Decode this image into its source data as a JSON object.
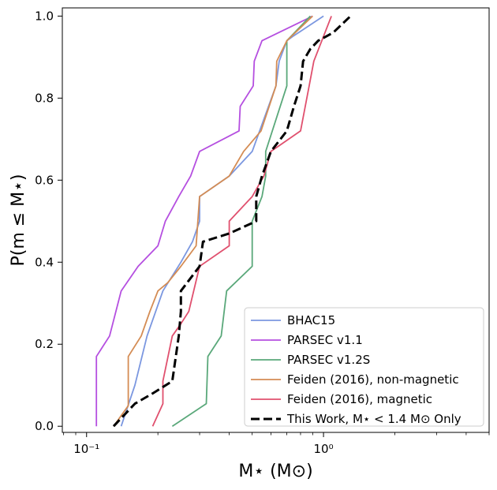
{
  "chart_data": {
    "type": "line",
    "xscale": "log",
    "xlim": [
      0.079,
      5.0
    ],
    "ylim": [
      -0.015,
      1.02
    ],
    "xlabel": "M⋆ (M⊙)",
    "ylabel": "P(m ≤ M⋆)",
    "x_ticks": [
      {
        "value": 0.1,
        "label": "10⁻¹"
      },
      {
        "value": 1.0,
        "label": "10⁰"
      }
    ],
    "y_ticks": [
      {
        "value": 0.0,
        "label": "0.0"
      },
      {
        "value": 0.2,
        "label": "0.2"
      },
      {
        "value": 0.4,
        "label": "0.4"
      },
      {
        "value": 0.6,
        "label": "0.6"
      },
      {
        "value": 0.8,
        "label": "0.8"
      },
      {
        "value": 1.0,
        "label": "1.0"
      }
    ],
    "legend_position": "lower right",
    "series": [
      {
        "name": "BHAC15",
        "color": "#7b97e0",
        "dashed": false,
        "x": [
          0.14,
          0.16,
          0.18,
          0.21,
          0.25,
          0.28,
          0.3,
          0.3,
          0.4,
          0.5,
          0.63,
          0.65,
          0.7,
          0.74,
          1.0
        ],
        "y": [
          0.0,
          0.1,
          0.22,
          0.33,
          0.4,
          0.45,
          0.5,
          0.56,
          0.61,
          0.67,
          0.83,
          0.89,
          0.94,
          0.95,
          1.0
        ]
      },
      {
        "name": "PARSEC v1.1",
        "color": "#b54fe0",
        "dashed": false,
        "x": [
          0.11,
          0.11,
          0.125,
          0.14,
          0.165,
          0.2,
          0.215,
          0.245,
          0.275,
          0.3,
          0.44,
          0.445,
          0.505,
          0.51,
          0.55,
          0.9
        ],
        "y": [
          0.0,
          0.17,
          0.22,
          0.33,
          0.39,
          0.44,
          0.5,
          0.56,
          0.61,
          0.67,
          0.72,
          0.78,
          0.83,
          0.89,
          0.94,
          1.0
        ]
      },
      {
        "name": "PARSEC v1.2S",
        "color": "#5aa87a",
        "dashed": false,
        "x": [
          0.23,
          0.32,
          0.325,
          0.37,
          0.39,
          0.5,
          0.5,
          0.55,
          0.57,
          0.57,
          0.7,
          0.7,
          0.88
        ],
        "y": [
          0.0,
          0.055,
          0.17,
          0.22,
          0.33,
          0.39,
          0.5,
          0.56,
          0.61,
          0.67,
          0.83,
          0.94,
          1.0
        ]
      },
      {
        "name": "Feiden (2016), non-magnetic",
        "color": "#d48c54",
        "dashed": false,
        "x": [
          0.13,
          0.15,
          0.15,
          0.17,
          0.185,
          0.2,
          0.22,
          0.25,
          0.29,
          0.3,
          0.4,
          0.46,
          0.545,
          0.63,
          0.635,
          0.7,
          0.9
        ],
        "y": [
          0.0,
          0.05,
          0.17,
          0.22,
          0.28,
          0.33,
          0.35,
          0.39,
          0.44,
          0.56,
          0.61,
          0.67,
          0.72,
          0.83,
          0.89,
          0.94,
          1.0
        ]
      },
      {
        "name": "Feiden (2016), magnetic",
        "color": "#e0506e",
        "dashed": false,
        "x": [
          0.19,
          0.21,
          0.21,
          0.23,
          0.25,
          0.27,
          0.3,
          0.4,
          0.4,
          0.5,
          0.56,
          0.6,
          0.8,
          0.87,
          0.91,
          1.08
        ],
        "y": [
          0.0,
          0.055,
          0.11,
          0.22,
          0.25,
          0.28,
          0.39,
          0.44,
          0.5,
          0.56,
          0.61,
          0.67,
          0.72,
          0.83,
          0.89,
          1.0
        ]
      },
      {
        "name": "This Work, M⋆ < 1.4 M⊙ Only",
        "color": "#000000",
        "dashed": true,
        "x": [
          0.13,
          0.16,
          0.19,
          0.23,
          0.245,
          0.25,
          0.25,
          0.3,
          0.31,
          0.4,
          0.52,
          0.52,
          0.55,
          0.6,
          0.7,
          0.75,
          0.8,
          0.82,
          0.88,
          0.95,
          1.1,
          1.3
        ],
        "y": [
          0.0,
          0.055,
          0.08,
          0.11,
          0.22,
          0.28,
          0.33,
          0.39,
          0.45,
          0.47,
          0.5,
          0.56,
          0.61,
          0.67,
          0.72,
          0.78,
          0.83,
          0.89,
          0.92,
          0.94,
          0.96,
          1.0
        ]
      }
    ]
  }
}
